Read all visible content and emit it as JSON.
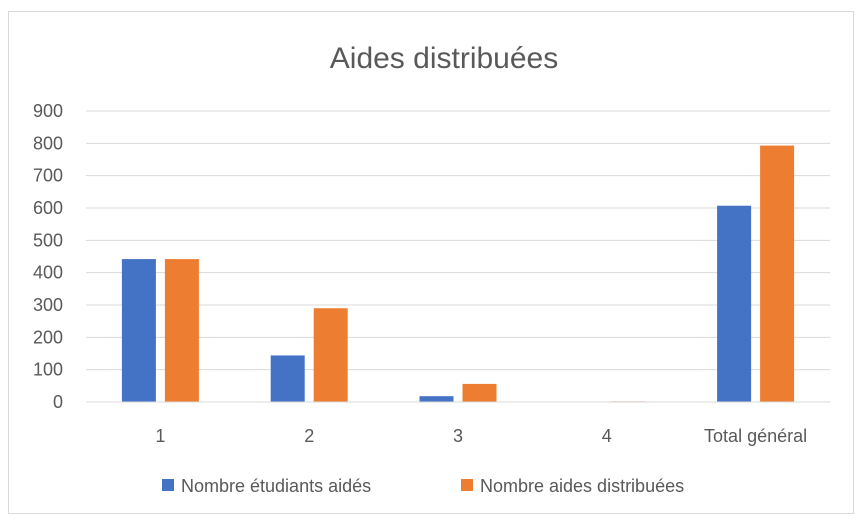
{
  "chart_data": {
    "type": "bar",
    "title": "Aides distribuées",
    "xlabel": "",
    "ylabel": "",
    "categories": [
      "1",
      "2",
      "3",
      "4",
      "Total général"
    ],
    "ylim": [
      0,
      900
    ],
    "yticks": [
      0,
      100,
      200,
      300,
      400,
      500,
      600,
      700,
      800,
      900
    ],
    "grid": true,
    "legend_position": "bottom",
    "series": [
      {
        "name": "Nombre étudiants aidés",
        "color": "#4472c4",
        "values": [
          442,
          144,
          18,
          0,
          607
        ]
      },
      {
        "name": "Nombre aides distribuées",
        "color": "#ed7d31",
        "values": [
          442,
          290,
          56,
          2,
          793
        ]
      }
    ]
  }
}
